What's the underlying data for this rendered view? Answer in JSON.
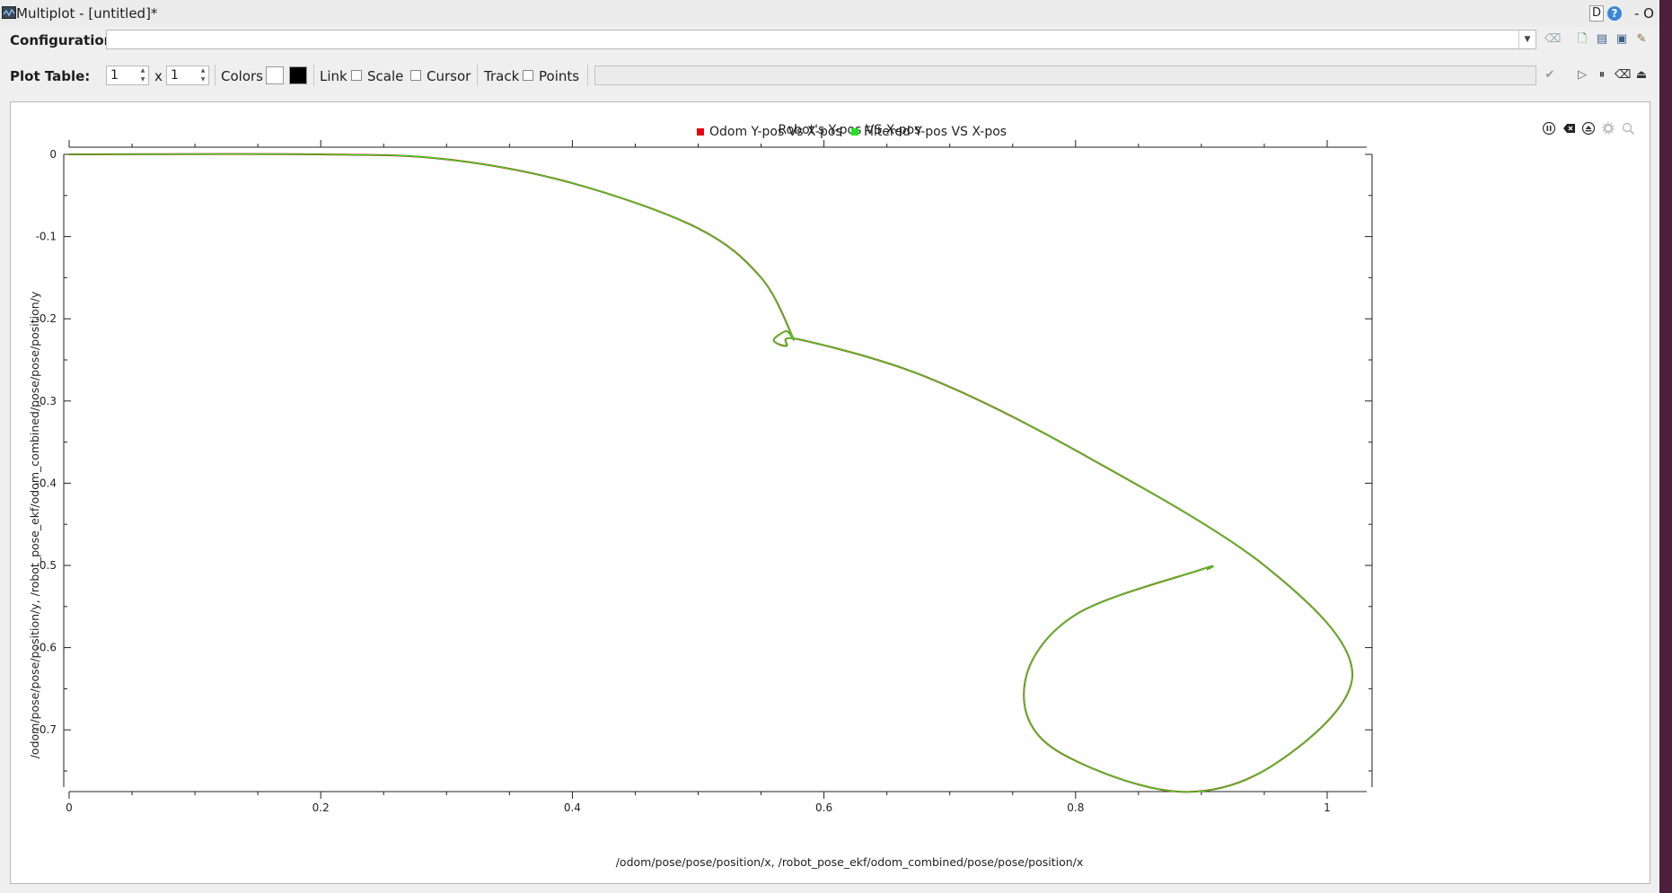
{
  "window": {
    "title": "Multiplot - [untitled]*",
    "d_badge": "D",
    "help_glyph": "?",
    "win_controls": "- O"
  },
  "config": {
    "label": "Configuration:",
    "value": "",
    "icons": [
      "clear-config-icon",
      "new-config-icon",
      "open-config-icon",
      "save-config-icon",
      "save-as-config-icon"
    ]
  },
  "plot_table": {
    "label": "Plot Table:",
    "rows": "1",
    "x_sep": "x",
    "cols": "1",
    "colors_label": "Colors",
    "background_color": "#ffffff",
    "foreground_color": "#000000",
    "link_label": "Link",
    "scale_label": "Scale",
    "scale_checked": false,
    "cursor_label": "Cursor",
    "cursor_checked": false,
    "track_label": "Track",
    "points_label": "Points",
    "points_checked": false,
    "track_value": ""
  },
  "plot": {
    "title": "Robot's Y-pos VS X-pos",
    "controls": [
      "pause-icon",
      "clear-icon",
      "settings-icon",
      "gear-icon",
      "zoom-icon"
    ]
  },
  "chart_data": {
    "type": "line",
    "title": "Robot's Y-pos VS X-pos",
    "xlabel": "/odom/pose/pose/position/x, /robot_pose_ekf/odom_combined/pose/pose/position/x",
    "ylabel": "/odom/pose/pose/position/y, /robot_pose_ekf/odom_combined/pose/pose/position/y",
    "xlim": [
      0,
      1.02
    ],
    "ylim": [
      -0.78,
      0.01
    ],
    "x_ticks": [
      0,
      0.2,
      0.4,
      0.6,
      0.8,
      1
    ],
    "x_tick_labels": [
      "0",
      "0.2",
      "0.4",
      "0.6",
      "0.8",
      "1"
    ],
    "y_ticks": [
      0,
      -0.1,
      -0.2,
      -0.3,
      -0.4,
      -0.5,
      -0.6,
      -0.7
    ],
    "y_tick_labels": [
      "0",
      "-0.1",
      "-0.2",
      "-0.3",
      "-0.4",
      "-0.5",
      "-0.6",
      "-0.7"
    ],
    "grid": false,
    "legend_position": "top-center",
    "series": [
      {
        "name": "Odom Y-pos Vs X-pos",
        "color": "#e8000b",
        "x": [
          0,
          0.2,
          0.3,
          0.4,
          0.5,
          0.55,
          0.575,
          0.57,
          0.56,
          0.57,
          0.58,
          0.68,
          0.8,
          0.95,
          1.02,
          0.96,
          0.88,
          0.78,
          0.76,
          0.8,
          0.9,
          0.905
        ],
        "y": [
          0,
          0,
          -0.006,
          -0.035,
          -0.09,
          -0.15,
          -0.222,
          -0.215,
          -0.226,
          -0.233,
          -0.225,
          -0.27,
          -0.36,
          -0.5,
          -0.63,
          -0.74,
          -0.775,
          -0.72,
          -0.64,
          -0.56,
          -0.505,
          -0.505
        ]
      },
      {
        "name": "Filtered Y-pos VS X-pos",
        "color": "#1ee61e",
        "x": [
          0,
          0.2,
          0.3,
          0.4,
          0.5,
          0.55,
          0.575,
          0.57,
          0.56,
          0.57,
          0.58,
          0.68,
          0.8,
          0.95,
          1.02,
          0.96,
          0.88,
          0.78,
          0.76,
          0.8,
          0.9,
          0.905
        ],
        "y": [
          0,
          0,
          -0.006,
          -0.035,
          -0.09,
          -0.15,
          -0.222,
          -0.215,
          -0.226,
          -0.233,
          -0.225,
          -0.27,
          -0.36,
          -0.5,
          -0.63,
          -0.74,
          -0.775,
          -0.72,
          -0.64,
          -0.56,
          -0.505,
          -0.505
        ]
      }
    ]
  }
}
